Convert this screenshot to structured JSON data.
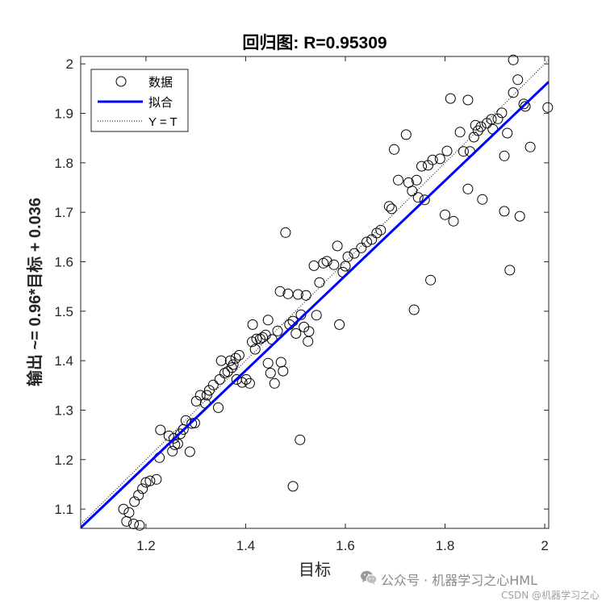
{
  "chart_data": {
    "type": "scatter",
    "title": "回归图: R=0.95309",
    "xlabel": "目标",
    "ylabel": "输出 ~= 0.96*目标 + 0.036",
    "xlim": [
      1.069,
      2.008
    ],
    "ylim": [
      1.061,
      2.015
    ],
    "xticks": [
      1.2,
      1.4,
      1.6,
      1.8,
      2
    ],
    "xtick_labels": [
      "1.2",
      "1.4",
      "1.6",
      "1.8",
      "2"
    ],
    "yticks": [
      1.1,
      1.2,
      1.3,
      1.4,
      1.5,
      1.6,
      1.7,
      1.8,
      1.9,
      2
    ],
    "ytick_labels": [
      "1.1",
      "1.2",
      "1.3",
      "1.4",
      "1.5",
      "1.6",
      "1.7",
      "1.8",
      "1.9",
      "2"
    ],
    "grid": false,
    "legend_position": "top-left",
    "series": [
      {
        "name": "数据",
        "color": "#000000",
        "points": [
          [
            1.155,
            1.1
          ],
          [
            1.161,
            1.075
          ],
          [
            1.166,
            1.093
          ],
          [
            1.175,
            1.07
          ],
          [
            1.187,
            1.067
          ],
          [
            1.177,
            1.115
          ],
          [
            1.185,
            1.128
          ],
          [
            1.193,
            1.141
          ],
          [
            1.2,
            1.154
          ],
          [
            1.208,
            1.157
          ],
          [
            1.221,
            1.16
          ],
          [
            1.227,
            1.204
          ],
          [
            1.229,
            1.26
          ],
          [
            1.246,
            1.248
          ],
          [
            1.253,
            1.217
          ],
          [
            1.258,
            1.23
          ],
          [
            1.256,
            1.243
          ],
          [
            1.264,
            1.232
          ],
          [
            1.269,
            1.252
          ],
          [
            1.275,
            1.261
          ],
          [
            1.28,
            1.279
          ],
          [
            1.288,
            1.216
          ],
          [
            1.292,
            1.273
          ],
          [
            1.298,
            1.274
          ],
          [
            1.301,
            1.318
          ],
          [
            1.309,
            1.33
          ],
          [
            1.319,
            1.314
          ],
          [
            1.322,
            1.33
          ],
          [
            1.327,
            1.34
          ],
          [
            1.335,
            1.351
          ],
          [
            1.345,
            1.305
          ],
          [
            1.348,
            1.362
          ],
          [
            1.351,
            1.4
          ],
          [
            1.358,
            1.375
          ],
          [
            1.364,
            1.378
          ],
          [
            1.369,
            1.4
          ],
          [
            1.372,
            1.386
          ],
          [
            1.375,
            1.392
          ],
          [
            1.38,
            1.405
          ],
          [
            1.387,
            1.411
          ],
          [
            1.382,
            1.362
          ],
          [
            1.393,
            1.356
          ],
          [
            1.401,
            1.362
          ],
          [
            1.408,
            1.354
          ],
          [
            1.414,
            1.473
          ],
          [
            1.413,
            1.438
          ],
          [
            1.419,
            1.423
          ],
          [
            1.422,
            1.444
          ],
          [
            1.429,
            1.444
          ],
          [
            1.434,
            1.447
          ],
          [
            1.44,
            1.452
          ],
          [
            1.445,
            1.482
          ],
          [
            1.445,
            1.395
          ],
          [
            1.45,
            1.375
          ],
          [
            1.453,
            1.443
          ],
          [
            1.458,
            1.354
          ],
          [
            1.464,
            1.46
          ],
          [
            1.469,
            1.54
          ],
          [
            1.471,
            1.397
          ],
          [
            1.475,
            1.379
          ],
          [
            1.48,
            1.659
          ],
          [
            1.485,
            1.535
          ],
          [
            1.488,
            1.473
          ],
          [
            1.495,
            1.48
          ],
          [
            1.501,
            1.455
          ],
          [
            1.495,
            1.146
          ],
          [
            1.505,
            1.534
          ],
          [
            1.509,
            1.24
          ],
          [
            1.511,
            1.493
          ],
          [
            1.517,
            1.468
          ],
          [
            1.521,
            1.532
          ],
          [
            1.525,
            1.439
          ],
          [
            1.527,
            1.459
          ],
          [
            1.537,
            1.592
          ],
          [
            1.542,
            1.492
          ],
          [
            1.548,
            1.558
          ],
          [
            1.556,
            1.597
          ],
          [
            1.563,
            1.601
          ],
          [
            1.577,
            1.594
          ],
          [
            1.584,
            1.632
          ],
          [
            1.588,
            1.473
          ],
          [
            1.595,
            1.579
          ],
          [
            1.6,
            1.591
          ],
          [
            1.605,
            1.61
          ],
          [
            1.618,
            1.617
          ],
          [
            1.632,
            1.628
          ],
          [
            1.643,
            1.64
          ],
          [
            1.653,
            1.645
          ],
          [
            1.663,
            1.658
          ],
          [
            1.671,
            1.664
          ],
          [
            1.688,
            1.712
          ],
          [
            1.693,
            1.707
          ],
          [
            1.698,
            1.827
          ],
          [
            1.706,
            1.765
          ],
          [
            1.722,
            1.857
          ],
          [
            1.727,
            1.76
          ],
          [
            1.734,
            1.743
          ],
          [
            1.738,
            1.503
          ],
          [
            1.743,
            1.765
          ],
          [
            1.746,
            1.73
          ],
          [
            1.753,
            1.793
          ],
          [
            1.759,
            1.725
          ],
          [
            1.766,
            1.795
          ],
          [
            1.771,
            1.563
          ],
          [
            1.775,
            1.806
          ],
          [
            1.79,
            1.808
          ],
          [
            1.804,
            1.824
          ],
          [
            1.8,
            1.695
          ],
          [
            1.811,
            1.93
          ],
          [
            1.817,
            1.682
          ],
          [
            1.83,
            1.862
          ],
          [
            1.837,
            1.823
          ],
          [
            1.846,
            1.927
          ],
          [
            1.846,
            1.747
          ],
          [
            1.85,
            1.823
          ],
          [
            1.858,
            1.852
          ],
          [
            1.861,
            1.876
          ],
          [
            1.866,
            1.865
          ],
          [
            1.872,
            1.873
          ],
          [
            1.875,
            1.726
          ],
          [
            1.884,
            1.88
          ],
          [
            1.893,
            1.888
          ],
          [
            1.896,
            1.868
          ],
          [
            1.906,
            1.889
          ],
          [
            1.914,
            1.901
          ],
          [
            1.919,
            1.814
          ],
          [
            1.919,
            1.702
          ],
          [
            1.925,
            1.86
          ],
          [
            1.93,
            1.583
          ],
          [
            1.937,
            2.008
          ],
          [
            1.937,
            1.942
          ],
          [
            1.946,
            1.968
          ],
          [
            1.95,
            1.692
          ],
          [
            1.958,
            1.919
          ],
          [
            1.961,
            1.914
          ],
          [
            1.971,
            1.832
          ],
          [
            2.006,
            1.912
          ]
        ]
      },
      {
        "name": "拟合",
        "color": "#0000ff",
        "slope": 0.96,
        "intercept": 0.036
      },
      {
        "name": "Y = T",
        "color": "#000000",
        "slope": 1,
        "intercept": 0
      }
    ]
  },
  "watermark": {
    "icon": "wechat-icon",
    "main_text": "公众号 · 机器学习之心HML",
    "csdn_text": "CSDN @机器学习之心"
  }
}
